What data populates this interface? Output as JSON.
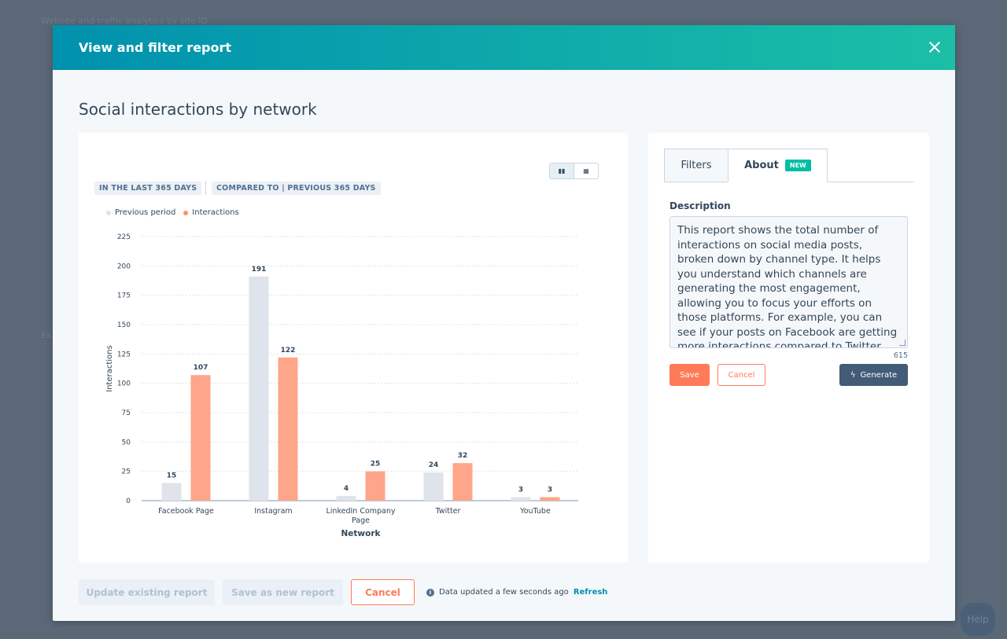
{
  "background": {
    "breadcrumb_fragment": "Website and traffic analytics by site ID",
    "side_fragment": "Ex"
  },
  "modal": {
    "title": "View and filter report",
    "report_title": "Social interactions by network"
  },
  "chart": {
    "tag_period": "IN THE LAST 365 DAYS",
    "tag_compare": "COMPARED TO | PREVIOUS 365 DAYS",
    "legend": {
      "previous": "Previous period",
      "current": "Interactions"
    }
  },
  "chart_data": {
    "type": "bar",
    "categories": [
      "Facebook Page",
      "Instagram",
      "LinkedIn Company Page",
      "Twitter",
      "YouTube"
    ],
    "series": [
      {
        "name": "Previous period",
        "values": [
          15,
          191,
          4,
          24,
          3
        ],
        "color": "#dfe3eb"
      },
      {
        "name": "Interactions",
        "values": [
          107,
          122,
          25,
          32,
          3
        ],
        "color": "#ffa58a"
      }
    ],
    "xlabel": "Network",
    "ylabel": "Interactions",
    "ylim": [
      0,
      225
    ],
    "yticks": [
      0,
      25,
      50,
      75,
      100,
      125,
      150,
      175,
      200,
      225
    ],
    "grid": true,
    "legend_position": "top-left"
  },
  "side": {
    "tab_filters": "Filters",
    "tab_about": "About",
    "badge_new": "NEW",
    "description_label": "Description",
    "description_text": "This report shows the total number of interactions on social media posts, broken down by channel type. It helps you understand which channels are generating the most engagement, allowing you to focus your efforts on those platforms. For example, you can see if your posts on Facebook are getting more interactions compared to Twitter, and adjust your social media",
    "char_count": "615",
    "save_label": "Save",
    "cancel_label": "Cancel",
    "generate_label": "Generate"
  },
  "footer": {
    "update_label": "Update existing report",
    "save_new_label": "Save as new report",
    "cancel_label": "Cancel",
    "status_text": "Data updated a few seconds ago",
    "refresh_label": "Refresh"
  },
  "help_label": "Help",
  "colors": {
    "header_start": "#0091ae",
    "header_end": "#1bbfa7",
    "accent": "#ff7a59",
    "badge": "#00bda5"
  }
}
